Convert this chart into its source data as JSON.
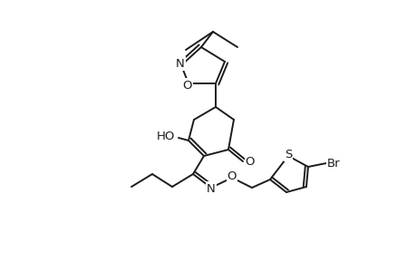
{
  "bg": "#ffffff",
  "lc": "#1c1c1c",
  "lw": 1.4,
  "fs": 9.5,
  "figsize": [
    4.6,
    3.0
  ],
  "dpi": 100,
  "xlim": [
    0,
    460
  ],
  "ylim": [
    0,
    300
  ]
}
